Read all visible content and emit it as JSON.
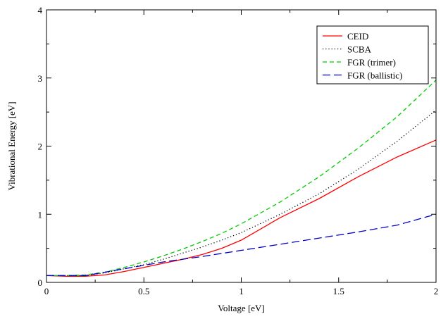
{
  "chart_data": {
    "type": "line",
    "title": "",
    "xlabel": "Voltage [eV]",
    "ylabel": "Vibrational Energy [eV]",
    "xlim": [
      0,
      2
    ],
    "ylim": [
      0,
      4
    ],
    "xticks": [
      0,
      0.5,
      1,
      1.5,
      2
    ],
    "xtick_labels": [
      "0",
      "0.5",
      "1",
      "1.5",
      "2"
    ],
    "yticks": [
      0,
      1,
      2,
      3,
      4
    ],
    "ytick_labels": [
      "0",
      "1",
      "2",
      "3",
      "4"
    ],
    "grid": false,
    "legend_position": "top-right",
    "series": [
      {
        "name": "CEID",
        "color": "#ff0000",
        "dash": "solid",
        "x": [
          0,
          0.1,
          0.2,
          0.25,
          0.3,
          0.4,
          0.5,
          0.6,
          0.7,
          0.8,
          0.9,
          1.0,
          1.2,
          1.4,
          1.6,
          1.8,
          2.0
        ],
        "y": [
          0.1,
          0.09,
          0.09,
          0.1,
          0.11,
          0.16,
          0.22,
          0.28,
          0.34,
          0.41,
          0.5,
          0.62,
          0.95,
          1.23,
          1.55,
          1.84,
          2.09
        ]
      },
      {
        "name": "SCBA",
        "color": "#000000",
        "dash": "dotted",
        "x": [
          0,
          0.1,
          0.2,
          0.3,
          0.4,
          0.5,
          0.6,
          0.7,
          0.8,
          0.9,
          1.0,
          1.2,
          1.4,
          1.6,
          1.8,
          2.0
        ],
        "y": [
          0.1,
          0.1,
          0.1,
          0.14,
          0.2,
          0.26,
          0.34,
          0.43,
          0.52,
          0.62,
          0.73,
          1.0,
          1.3,
          1.66,
          2.07,
          2.53
        ]
      },
      {
        "name": "FGR (trimer)",
        "color": "#00cc00",
        "dash": "dashed",
        "x": [
          0,
          0.1,
          0.2,
          0.3,
          0.4,
          0.5,
          0.6,
          0.7,
          0.8,
          0.9,
          1.0,
          1.2,
          1.4,
          1.6,
          1.8,
          2.0
        ],
        "y": [
          0.1,
          0.1,
          0.11,
          0.15,
          0.22,
          0.3,
          0.39,
          0.49,
          0.6,
          0.72,
          0.86,
          1.18,
          1.55,
          1.97,
          2.43,
          2.97
        ]
      },
      {
        "name": "FGR (ballistic)",
        "color": "#0000cc",
        "dash": "longdash",
        "x": [
          0,
          0.2,
          0.3,
          0.4,
          0.5,
          0.6,
          0.7,
          0.8,
          1.0,
          1.2,
          1.4,
          1.6,
          1.8,
          2.0
        ],
        "y": [
          0.1,
          0.1,
          0.15,
          0.2,
          0.25,
          0.3,
          0.34,
          0.38,
          0.47,
          0.56,
          0.65,
          0.74,
          0.84,
          1.0
        ]
      }
    ]
  }
}
